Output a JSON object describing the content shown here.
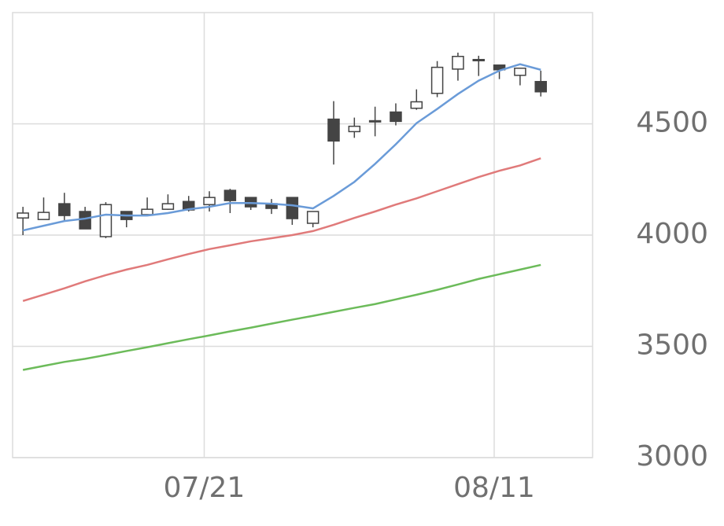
{
  "chart_data": {
    "type": "candlestick",
    "x": [
      0,
      1,
      2,
      3,
      4,
      5,
      6,
      7,
      8,
      9,
      10,
      11,
      12,
      13,
      14,
      15,
      16,
      17,
      18,
      19,
      20,
      21,
      22,
      23,
      24,
      25
    ],
    "open": [
      4077,
      4070,
      4141,
      4106,
      3993,
      4106,
      4092,
      4116,
      4151,
      4137,
      4201,
      4169,
      4141,
      4169,
      4053,
      4521,
      4465,
      4511,
      4553,
      4570,
      4637,
      4746,
      4785,
      4764,
      4718,
      4690
    ],
    "high": [
      4127,
      4169,
      4190,
      4127,
      4148,
      4106,
      4169,
      4183,
      4176,
      4197,
      4208,
      4169,
      4162,
      4169,
      4106,
      4602,
      4528,
      4577,
      4592,
      4655,
      4782,
      4820,
      4806,
      4764,
      4750,
      4739
    ],
    "low": [
      4000,
      4070,
      4063,
      4028,
      3986,
      4035,
      4092,
      4113,
      4106,
      4106,
      4099,
      4113,
      4095,
      4046,
      4035,
      4317,
      4437,
      4444,
      4493,
      4563,
      4620,
      4694,
      4715,
      4701,
      4673,
      4623
    ],
    "close": [
      4099,
      4102,
      4088,
      4028,
      4137,
      4070,
      4116,
      4141,
      4113,
      4169,
      4155,
      4127,
      4120,
      4074,
      4106,
      4423,
      4489,
      4514,
      4511,
      4599,
      4754,
      4803,
      4789,
      4743,
      4750,
      4644
    ],
    "up_color": "#ffffff",
    "down_color": "#444444",
    "series": [
      {
        "color": "#6a9bd8",
        "values": [
          4021,
          4042,
          4063,
          4074,
          4092,
          4088,
          4088,
          4099,
          4116,
          4127,
          4144,
          4144,
          4141,
          4134,
          4120,
          4176,
          4239,
          4320,
          4408,
          4503,
          4567,
          4634,
          4694,
          4739,
          4768,
          4743
        ]
      },
      {
        "color": "#e07a7a",
        "values": [
          3704,
          3732,
          3761,
          3792,
          3820,
          3845,
          3866,
          3891,
          3915,
          3937,
          3954,
          3972,
          3986,
          4000,
          4018,
          4046,
          4077,
          4106,
          4137,
          4165,
          4197,
          4229,
          4261,
          4289,
          4313,
          4345
        ]
      },
      {
        "color": "#6cbb5a",
        "values": [
          3394,
          3412,
          3430,
          3444,
          3461,
          3479,
          3496,
          3514,
          3532,
          3549,
          3567,
          3584,
          3602,
          3620,
          3637,
          3655,
          3673,
          3690,
          3711,
          3732,
          3754,
          3778,
          3803,
          3824,
          3845,
          3866
        ]
      }
    ],
    "xlim": [
      -0.5,
      27.5
    ],
    "xticks": [
      {
        "value": 8.75,
        "label": "07/21"
      },
      {
        "value": 22.75,
        "label": "08/11"
      }
    ],
    "ylim": [
      3000,
      5000
    ],
    "yticks": [
      3000,
      3500,
      4000,
      4500
    ],
    "grid": true
  }
}
